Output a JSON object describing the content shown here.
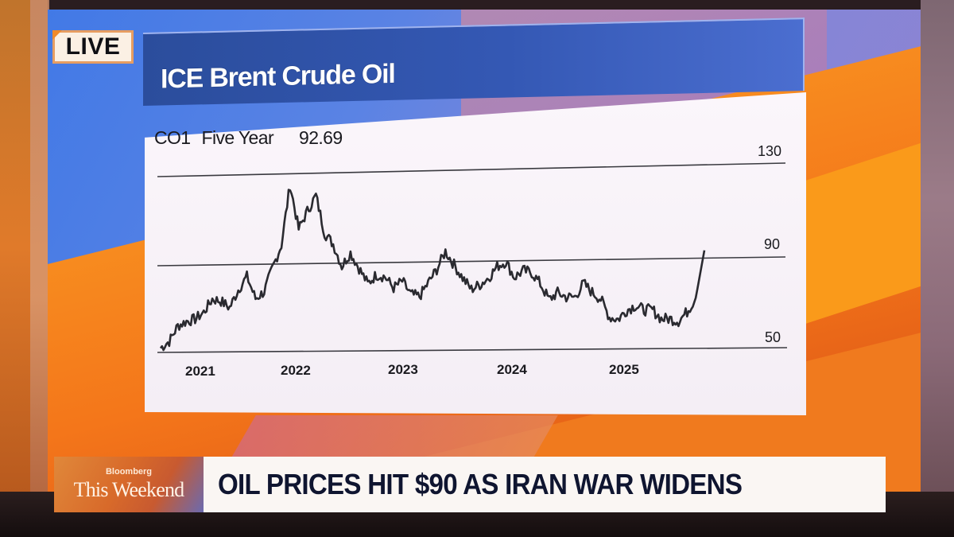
{
  "broadcast": {
    "live_label": "LIVE",
    "lower_third": {
      "brand": "Bloomberg",
      "show_name": "This Weekend",
      "headline": "OIL PRICES HIT $90 AS IRAN WAR WIDENS"
    }
  },
  "chart_header": {
    "title": "ICE Brent Crude Oil",
    "ticker": "CO1",
    "period": "Five Year",
    "last_value": "92.69"
  },
  "colors": {
    "line": "#2a2a30",
    "gridline": "#3a3a40",
    "title_bar": "#3458b4",
    "panel": "#f7f1f7"
  },
  "chart_data": {
    "type": "line",
    "title": "ICE Brent Crude Oil",
    "subtitle": "CO1 Five Year 92.69",
    "xlabel": "",
    "ylabel": "",
    "ylim": [
      50,
      130
    ],
    "yticks": [
      50,
      90,
      130
    ],
    "xtick_labels": [
      "2021",
      "2022",
      "2023",
      "2024",
      "2025"
    ],
    "grid": "horizontal at 50, 90, 130",
    "legend": "none",
    "series": [
      {
        "name": "CO1",
        "x": [
          "2020-12",
          "2021-01",
          "2021-02",
          "2021-03",
          "2021-04",
          "2021-05",
          "2021-06",
          "2021-07",
          "2021-08",
          "2021-09",
          "2021-10",
          "2021-11",
          "2021-12",
          "2022-01",
          "2022-02",
          "2022-03",
          "2022-04",
          "2022-05",
          "2022-06",
          "2022-07",
          "2022-08",
          "2022-09",
          "2022-10",
          "2022-11",
          "2022-12",
          "2023-01",
          "2023-02",
          "2023-03",
          "2023-04",
          "2023-05",
          "2023-06",
          "2023-07",
          "2023-08",
          "2023-09",
          "2023-10",
          "2023-11",
          "2023-12",
          "2024-01",
          "2024-02",
          "2024-03",
          "2024-04",
          "2024-05",
          "2024-06",
          "2024-07",
          "2024-08",
          "2024-09",
          "2024-10",
          "2024-11",
          "2024-12",
          "2025-01",
          "2025-02",
          "2025-03",
          "2025-04",
          "2025-05",
          "2025-06",
          "2025-07",
          "2025-08",
          "2025-09",
          "2025-10",
          "2025-11",
          "2025-12",
          "2026-01",
          "2026-02",
          "2026-03"
        ],
        "values": [
          52,
          55,
          62,
          64,
          65,
          68,
          74,
          73,
          70,
          78,
          84,
          74,
          77,
          88,
          98,
          125,
          105,
          113,
          120,
          103,
          98,
          88,
          94,
          87,
          80,
          84,
          83,
          78,
          81,
          75,
          74,
          80,
          86,
          94,
          88,
          82,
          77,
          79,
          82,
          87,
          89,
          82,
          85,
          84,
          79,
          72,
          75,
          73,
          73,
          79,
          75,
          72,
          64,
          63,
          67,
          69,
          67,
          67,
          63,
          63,
          62,
          66,
          72,
          92.69
        ]
      }
    ]
  }
}
